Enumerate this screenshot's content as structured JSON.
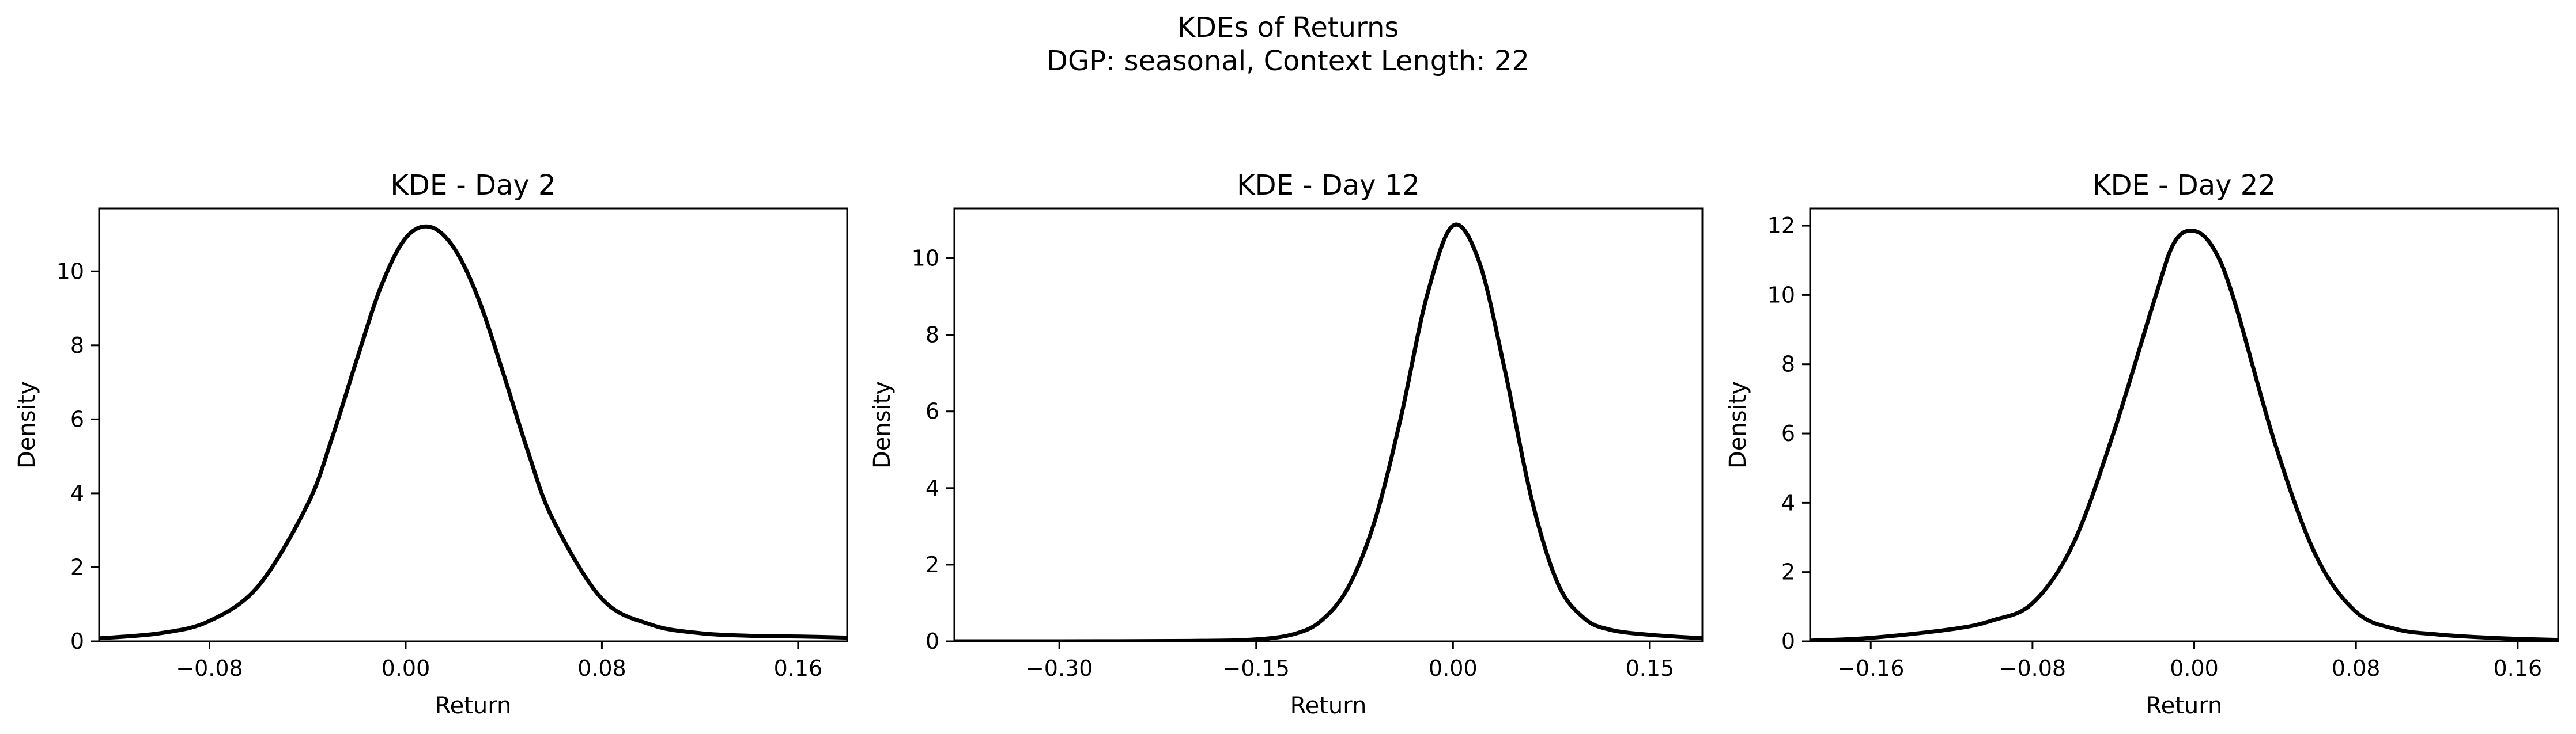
{
  "figure": {
    "suptitle_line1": "KDEs of Returns",
    "suptitle_line2": "DGP: seasonal, Context Length: 22"
  },
  "colors": {
    "line": "#000000",
    "axes": "#000000",
    "background": "#ffffff"
  },
  "chart_data": [
    {
      "type": "line",
      "title": "KDE - Day 2",
      "xlabel": "Return",
      "ylabel": "Density",
      "xlim": [
        -0.125,
        0.18
      ],
      "ylim": [
        0,
        11.7
      ],
      "xticks": [
        -0.08,
        0.0,
        0.08,
        0.16
      ],
      "xtick_labels": [
        "−0.08",
        "0.00",
        "0.08",
        "0.16"
      ],
      "yticks": [
        0,
        2,
        4,
        6,
        8,
        10
      ],
      "ytick_labels": [
        "0",
        "2",
        "4",
        "6",
        "8",
        "10"
      ],
      "grid": false,
      "series": [
        {
          "x": [
            -0.125,
            -0.1,
            -0.08,
            -0.06,
            -0.04,
            -0.03,
            -0.02,
            -0.01,
            0.0,
            0.01,
            0.02,
            0.03,
            0.04,
            0.05,
            0.06,
            0.08,
            0.1,
            0.12,
            0.14,
            0.16,
            0.18
          ],
          "y": [
            0.08,
            0.22,
            0.55,
            1.5,
            3.7,
            5.5,
            7.6,
            9.6,
            10.9,
            11.2,
            10.6,
            9.2,
            7.2,
            5.1,
            3.3,
            1.15,
            0.45,
            0.22,
            0.15,
            0.13,
            0.1
          ]
        }
      ]
    },
    {
      "type": "line",
      "title": "KDE - Day 12",
      "xlabel": "Return",
      "ylabel": "Density",
      "xlim": [
        -0.38,
        0.19
      ],
      "ylim": [
        0,
        11.3
      ],
      "xticks": [
        -0.3,
        -0.15,
        0.0,
        0.15
      ],
      "xtick_labels": [
        "−0.30",
        "−0.15",
        "0.00",
        "0.15"
      ],
      "yticks": [
        0,
        2,
        4,
        6,
        8,
        10
      ],
      "ytick_labels": [
        "0",
        "2",
        "4",
        "6",
        "8",
        "10"
      ],
      "grid": false,
      "series": [
        {
          "x": [
            -0.38,
            -0.3,
            -0.2,
            -0.15,
            -0.12,
            -0.1,
            -0.08,
            -0.06,
            -0.04,
            -0.02,
            0.0,
            0.02,
            0.04,
            0.06,
            0.08,
            0.1,
            0.12,
            0.15,
            0.19
          ],
          "y": [
            0.0,
            0.0,
            0.01,
            0.05,
            0.2,
            0.55,
            1.4,
            3.1,
            5.8,
            9.0,
            10.85,
            9.9,
            7.0,
            3.7,
            1.5,
            0.6,
            0.3,
            0.17,
            0.08
          ]
        }
      ]
    },
    {
      "type": "line",
      "title": "KDE - Day 22",
      "xlabel": "Return",
      "ylabel": "Density",
      "xlim": [
        -0.19,
        0.18
      ],
      "ylim": [
        0,
        12.5
      ],
      "xticks": [
        -0.16,
        -0.08,
        0.0,
        0.08,
        0.16
      ],
      "xtick_labels": [
        "−0.16",
        "−0.08",
        "0.00",
        "0.08",
        "0.16"
      ],
      "yticks": [
        0,
        2,
        4,
        6,
        8,
        10,
        12
      ],
      "ytick_labels": [
        "0",
        "2",
        "4",
        "6",
        "8",
        "10",
        "12"
      ],
      "grid": false,
      "series": [
        {
          "x": [
            -0.19,
            -0.16,
            -0.12,
            -0.1,
            -0.08,
            -0.06,
            -0.04,
            -0.02,
            -0.01,
            0.0,
            0.01,
            0.02,
            0.04,
            0.06,
            0.08,
            0.1,
            0.12,
            0.14,
            0.16,
            0.18
          ],
          "y": [
            0.02,
            0.1,
            0.35,
            0.6,
            1.1,
            2.8,
            6.0,
            9.8,
            11.5,
            11.85,
            11.3,
            9.8,
            5.7,
            2.5,
            0.85,
            0.35,
            0.2,
            0.12,
            0.07,
            0.04
          ]
        }
      ]
    }
  ]
}
